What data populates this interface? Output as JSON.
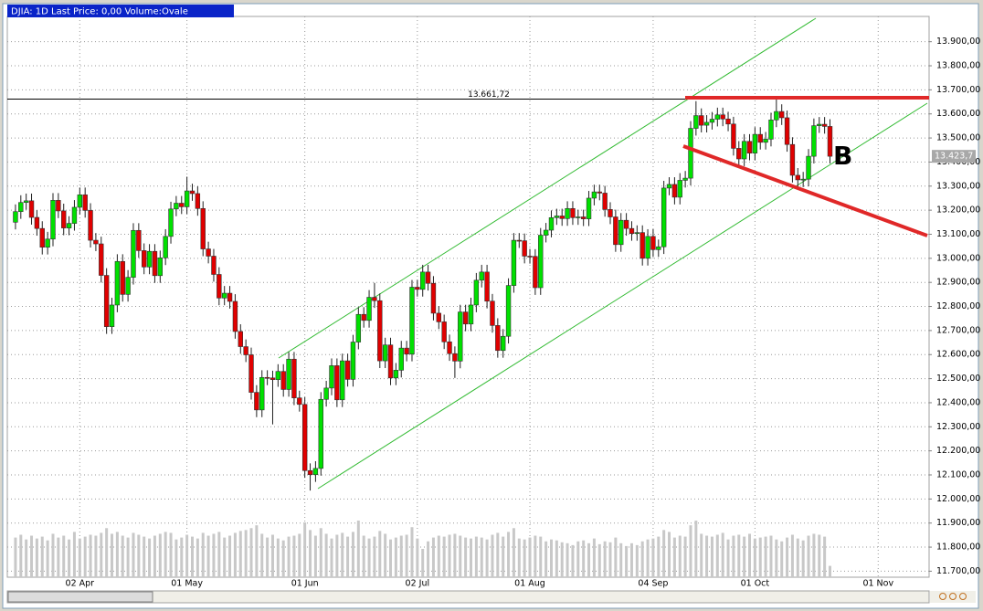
{
  "chart_data": {
    "type": "candlestick",
    "title": "DJIA: 1D Last Price: 0,00 Volume:Ovale",
    "categories": [
      null,
      null,
      null,
      null,
      null,
      null,
      null,
      null,
      null,
      null,
      null,
      null,
      "02 Apr",
      null,
      null,
      null,
      null,
      null,
      null,
      null,
      null,
      null,
      null,
      null,
      null,
      null,
      null,
      null,
      null,
      null,
      null,
      null,
      "01 May",
      null,
      null,
      null,
      null,
      null,
      null,
      null,
      null,
      null,
      null,
      null,
      null,
      null,
      null,
      null,
      null,
      null,
      null,
      null,
      null,
      null,
      "01 Jun",
      null,
      null,
      null,
      null,
      null,
      null,
      null,
      null,
      null,
      null,
      null,
      null,
      null,
      null,
      null,
      null,
      null,
      null,
      null,
      null,
      "02 Jul",
      null,
      null,
      null,
      null,
      null,
      null,
      null,
      null,
      null,
      null,
      null,
      null,
      null,
      null,
      null,
      null,
      null,
      null,
      null,
      null,
      "01 Aug",
      null,
      null,
      null,
      null,
      null,
      null,
      null,
      null,
      null,
      null,
      null,
      null,
      null,
      null,
      null,
      null,
      null,
      null,
      null,
      null,
      null,
      null,
      "04 Sep",
      null,
      null,
      null,
      null,
      null,
      null,
      null,
      null,
      null,
      null,
      null,
      null,
      null,
      null,
      null,
      null,
      null,
      null,
      "01 Oct",
      null,
      null,
      null,
      null,
      null,
      null,
      null,
      null,
      null,
      null,
      null,
      null,
      null,
      null,
      null,
      null,
      null,
      null,
      null,
      null,
      null,
      null,
      "01 Nov",
      null,
      null,
      null,
      null,
      null,
      null,
      null,
      null,
      null
    ],
    "open": [
      13150,
      13194,
      13232,
      13239,
      13170,
      13124,
      13046,
      13080,
      13241,
      13197,
      13126,
      13145,
      13212,
      13264,
      13199,
      13075,
      13060,
      12929,
      12716,
      12806,
      12987,
      12850,
      12921,
      13116,
      13032,
      12964,
      13029,
      12928,
      13002,
      13091,
      13205,
      13229,
      13214,
      13280,
      13269,
      13207,
      13039,
      13009,
      12933,
      12835,
      12855,
      12821,
      12696,
      12633,
      12599,
      12443,
      12370,
      12505,
      12503,
      12496,
      12530,
      12455,
      12581,
      12420,
      12393,
      12118,
      12101,
      12127,
      12414,
      12461,
      12554,
      12412,
      12574,
      12497,
      12652,
      12767,
      12742,
      12838,
      12824,
      12574,
      12640,
      12503,
      12535,
      12627,
      12602,
      12880,
      12871,
      12943,
      12896,
      12772,
      12736,
      12653,
      12604,
      12573,
      12777,
      12727,
      12806,
      12909,
      12943,
      12822,
      12721,
      12617,
      12676,
      12887,
      13075,
      13073,
      13009,
      13008,
      12878,
      13096,
      13117,
      13169,
      13176,
      13165,
      13207,
      13169,
      13172,
      13164,
      13250,
      13276,
      13271,
      13203,
      13172,
      13057,
      13158,
      13124,
      13103,
      13107,
      13000,
      13091,
      13036,
      13048,
      13292,
      13307,
      13254,
      13324,
      13333,
      13540,
      13593,
      13553,
      13565,
      13578,
      13596,
      13579,
      13558,
      13457,
      13413,
      13486,
      13437,
      13515,
      13482,
      13495,
      13575,
      13610,
      13584,
      13473,
      13345,
      13326,
      13329,
      13424,
      13551,
      13557,
      13548,
      null,
      null,
      null,
      null,
      null,
      null,
      null,
      null,
      null,
      null,
      null,
      null,
      null,
      null,
      null,
      null,
      null,
      null
    ],
    "high": [
      13224,
      13262,
      13269,
      13269,
      13200,
      13154,
      13110,
      13271,
      13271,
      13227,
      13175,
      13242,
      13294,
      13294,
      13229,
      13105,
      13090,
      12959,
      12836,
      13017,
      13017,
      12951,
      13146,
      13146,
      13062,
      13059,
      13059,
      13032,
      13121,
      13235,
      13259,
      13259,
      13339,
      13310,
      13299,
      13237,
      13069,
      13039,
      12963,
      12885,
      12885,
      12851,
      12726,
      12663,
      12629,
      12473,
      12535,
      12535,
      12533,
      12560,
      12560,
      12611,
      12611,
      12450,
      12423,
      12148,
      12157,
      12444,
      12491,
      12584,
      12584,
      12604,
      12604,
      12682,
      12797,
      12797,
      12868,
      12898,
      12854,
      12670,
      12670,
      12565,
      12657,
      12657,
      12910,
      12910,
      12973,
      12973,
      12926,
      12802,
      12766,
      12683,
      12634,
      12807,
      12807,
      12836,
      12939,
      12973,
      12973,
      12852,
      12751,
      12706,
      12917,
      13105,
      13105,
      13103,
      13039,
      13038,
      13126,
      13147,
      13199,
      13206,
      13206,
      13237,
      13237,
      13202,
      13202,
      13280,
      13306,
      13306,
      13301,
      13233,
      13202,
      13188,
      13188,
      13154,
      13137,
      13137,
      13121,
      13121,
      13078,
      13322,
      13337,
      13337,
      13354,
      13363,
      13570,
      13653,
      13623,
      13595,
      13608,
      13626,
      13626,
      13609,
      13588,
      13487,
      13516,
      13516,
      13545,
      13545,
      13525,
      13605,
      13661,
      13640,
      13614,
      13503,
      13375,
      13359,
      13454,
      13581,
      13587,
      13587,
      13578,
      null,
      null,
      null,
      null,
      null,
      null,
      null,
      null,
      null,
      null,
      null,
      null,
      null,
      null,
      null,
      null,
      null,
      null
    ],
    "low": [
      13120,
      13164,
      13202,
      13140,
      13094,
      13016,
      13016,
      13050,
      13167,
      13096,
      13096,
      13115,
      13182,
      13169,
      13045,
      13030,
      12899,
      12686,
      12686,
      12776,
      12820,
      12820,
      12891,
      13002,
      12934,
      12934,
      12898,
      12898,
      12972,
      13061,
      13175,
      13184,
      13184,
      13239,
      13177,
      13009,
      12979,
      12903,
      12805,
      12805,
      12791,
      12666,
      12603,
      12569,
      12413,
      12340,
      12340,
      12473,
      12310,
      12466,
      12425,
      12425,
      12390,
      12363,
      12088,
      12035,
      12071,
      12097,
      12384,
      12431,
      12382,
      12382,
      12467,
      12467,
      12622,
      12712,
      12712,
      12794,
      12544,
      12544,
      12473,
      12473,
      12505,
      12572,
      12572,
      12841,
      12841,
      12866,
      12742,
      12706,
      12623,
      12574,
      12503,
      12543,
      12697,
      12697,
      12776,
      12879,
      12792,
      12691,
      12587,
      12587,
      12646,
      12857,
      13043,
      12979,
      12978,
      12848,
      12848,
      13066,
      13087,
      13139,
      13135,
      13135,
      13139,
      13139,
      13134,
      13134,
      13220,
      13241,
      13173,
      13142,
      13027,
      13027,
      13094,
      13073,
      13073,
      12970,
      12970,
      13006,
      13006,
      13018,
      13262,
      13224,
      13224,
      13294,
      13303,
      13510,
      13523,
      13523,
      13535,
      13548,
      13549,
      13528,
      13427,
      13383,
      13383,
      13407,
      13407,
      13452,
      13452,
      13465,
      13545,
      13554,
      13443,
      13315,
      13296,
      13296,
      13299,
      13394,
      13521,
      13518,
      13394,
      null,
      null,
      null,
      null,
      null,
      null,
      null,
      null,
      null,
      null,
      null,
      null,
      null,
      null,
      null,
      null,
      null,
      null
    ],
    "close": [
      13194,
      13232,
      13239,
      13170,
      13124,
      13046,
      13080,
      13241,
      13197,
      13126,
      13145,
      13212,
      13264,
      13199,
      13075,
      13060,
      12929,
      12716,
      12806,
      12987,
      12850,
      12921,
      13116,
      13032,
      12964,
      13029,
      12928,
      13002,
      13091,
      13205,
      13229,
      13214,
      13280,
      13269,
      13207,
      13039,
      13009,
      12933,
      12835,
      12855,
      12821,
      12696,
      12633,
      12599,
      12443,
      12370,
      12505,
      12503,
      12496,
      12530,
      12455,
      12581,
      12420,
      12393,
      12118,
      12101,
      12127,
      12414,
      12461,
      12554,
      12412,
      12574,
      12497,
      12652,
      12767,
      12742,
      12838,
      12824,
      12574,
      12640,
      12503,
      12535,
      12627,
      12602,
      12880,
      12871,
      12943,
      12896,
      12772,
      12736,
      12653,
      12604,
      12573,
      12777,
      12727,
      12806,
      12909,
      12943,
      12822,
      12721,
      12617,
      12676,
      12887,
      13075,
      13073,
      13009,
      13008,
      12878,
      13096,
      13117,
      13169,
      13176,
      13165,
      13207,
      13169,
      13172,
      13164,
      13250,
      13276,
      13271,
      13203,
      13172,
      13057,
      13158,
      13124,
      13103,
      13107,
      13000,
      13091,
      13036,
      13048,
      13292,
      13307,
      13254,
      13324,
      13333,
      13540,
      13593,
      13553,
      13565,
      13578,
      13596,
      13579,
      13558,
      13457,
      13413,
      13486,
      13437,
      13515,
      13482,
      13495,
      13575,
      13610,
      13584,
      13473,
      13345,
      13326,
      13329,
      13424,
      13551,
      13557,
      13548,
      13424,
      null,
      null,
      null,
      null,
      null,
      null,
      null,
      null,
      null,
      null,
      null,
      null,
      null,
      null,
      null,
      null,
      null,
      null
    ],
    "volume": [
      42,
      45,
      40,
      44,
      41,
      43,
      39,
      46,
      42,
      44,
      40,
      48,
      41,
      43,
      45,
      44,
      47,
      52,
      46,
      48,
      44,
      42,
      47,
      45,
      43,
      41,
      44,
      46,
      48,
      47,
      40,
      42,
      45,
      43,
      41,
      47,
      44,
      46,
      48,
      42,
      44,
      47,
      49,
      50,
      52,
      55,
      46,
      42,
      45,
      41,
      39,
      43,
      44,
      46,
      58,
      50,
      44,
      52,
      46,
      41,
      45,
      47,
      43,
      48,
      60,
      44,
      41,
      43,
      49,
      46,
      40,
      42,
      44,
      45,
      53,
      41,
      30,
      38,
      42,
      44,
      43,
      45,
      46,
      44,
      42,
      41,
      43,
      42,
      40,
      45,
      47,
      43,
      48,
      52,
      41,
      40,
      42,
      44,
      43,
      38,
      40,
      39,
      37,
      36,
      34,
      38,
      39,
      36,
      41,
      35,
      38,
      37,
      42,
      36,
      33,
      36,
      34,
      38,
      40,
      41,
      43,
      50,
      48,
      42,
      44,
      43,
      55,
      60,
      46,
      44,
      43,
      45,
      47,
      40,
      44,
      45,
      43,
      46,
      41,
      42,
      43,
      44,
      40,
      38,
      42,
      45,
      41,
      39,
      44,
      46,
      45,
      43,
      12,
      null,
      null,
      null,
      null,
      null,
      null,
      null,
      null,
      null,
      null,
      null,
      null,
      null,
      null,
      null,
      null,
      null,
      null
    ],
    "up_color": "#00e000",
    "down_color": "#e00000",
    "volume_color": "#c8c8c8",
    "ylim": [
      11675,
      14005
    ],
    "yticks": [
      {
        "value": 11700,
        "label": "11.700,00"
      },
      {
        "value": 11800,
        "label": "11.800,00"
      },
      {
        "value": 11900,
        "label": "11.900,00"
      },
      {
        "value": 12000,
        "label": "12.000,00"
      },
      {
        "value": 12100,
        "label": "12.100,00"
      },
      {
        "value": 12200,
        "label": "12.200,00"
      },
      {
        "value": 12300,
        "label": "12.300,00"
      },
      {
        "value": 12400,
        "label": "12.400,00"
      },
      {
        "value": 12500,
        "label": "12.500,00"
      },
      {
        "value": 12600,
        "label": "12.600,00"
      },
      {
        "value": 12700,
        "label": "12.700,00"
      },
      {
        "value": 12800,
        "label": "12.800,00"
      },
      {
        "value": 12900,
        "label": "12.900,00"
      },
      {
        "value": 13000,
        "label": "13.000,00"
      },
      {
        "value": 13100,
        "label": "13.100,00"
      },
      {
        "value": 13200,
        "label": "13.200,00"
      },
      {
        "value": 13300,
        "label": "13.300,00"
      },
      {
        "value": 13400,
        "label": "13.400,00"
      },
      {
        "value": 13500,
        "label": "13.500,00"
      },
      {
        "value": 13600,
        "label": "13.600,00"
      },
      {
        "value": 13700,
        "label": "13.700,00"
      },
      {
        "value": 13800,
        "label": "13.800,00"
      },
      {
        "value": 13900,
        "label": "13.900,00"
      }
    ],
    "grid": true,
    "reference_line": {
      "value": 13661.72,
      "label": "13.661,72"
    },
    "last_price": {
      "value": 13423.7,
      "label": "13.423,7"
    },
    "annotation": "B"
  }
}
